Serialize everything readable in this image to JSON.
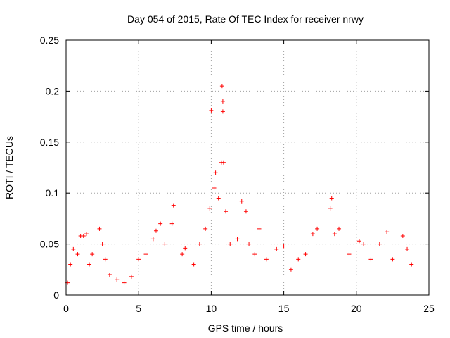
{
  "chart_data": {
    "type": "scatter",
    "title": "Day 054 of 2015, Rate Of TEC Index for receiver nrwy",
    "xlabel": "GPS time / hours",
    "ylabel": "ROTI / TECUs",
    "xlim": [
      0,
      25
    ],
    "ylim": [
      0,
      0.25
    ],
    "x_ticks": [
      0,
      5,
      10,
      15,
      20,
      25
    ],
    "y_ticks": [
      0,
      0.05,
      0.1,
      0.15,
      0.2,
      0.25
    ],
    "x_tick_labels": [
      "0",
      "5",
      "10",
      "15",
      "20",
      "25"
    ],
    "y_tick_labels": [
      "0",
      "0.05",
      "0.1",
      "0.15",
      "0.2",
      "0.25"
    ],
    "grid": true,
    "marker": "+",
    "color": "#ff0000",
    "series": [
      {
        "name": "ROTI",
        "points": [
          [
            0.1,
            0.012
          ],
          [
            0.3,
            0.03
          ],
          [
            0.5,
            0.045
          ],
          [
            0.8,
            0.04
          ],
          [
            1.0,
            0.058
          ],
          [
            1.2,
            0.058
          ],
          [
            1.4,
            0.06
          ],
          [
            1.6,
            0.03
          ],
          [
            1.8,
            0.04
          ],
          [
            2.3,
            0.065
          ],
          [
            2.5,
            0.05
          ],
          [
            2.7,
            0.035
          ],
          [
            3.0,
            0.02
          ],
          [
            3.5,
            0.015
          ],
          [
            4.0,
            0.012
          ],
          [
            4.5,
            0.018
          ],
          [
            5.0,
            0.035
          ],
          [
            5.5,
            0.04
          ],
          [
            6.0,
            0.055
          ],
          [
            6.2,
            0.063
          ],
          [
            6.5,
            0.07
          ],
          [
            6.8,
            0.05
          ],
          [
            7.3,
            0.07
          ],
          [
            7.4,
            0.088
          ],
          [
            8.0,
            0.04
          ],
          [
            8.2,
            0.046
          ],
          [
            8.8,
            0.03
          ],
          [
            9.2,
            0.05
          ],
          [
            9.6,
            0.065
          ],
          [
            9.9,
            0.085
          ],
          [
            10.0,
            0.181
          ],
          [
            10.2,
            0.105
          ],
          [
            10.3,
            0.12
          ],
          [
            10.5,
            0.095
          ],
          [
            10.7,
            0.13
          ],
          [
            10.75,
            0.205
          ],
          [
            10.8,
            0.19
          ],
          [
            10.8,
            0.18
          ],
          [
            10.85,
            0.13
          ],
          [
            11.0,
            0.082
          ],
          [
            11.3,
            0.05
          ],
          [
            11.8,
            0.055
          ],
          [
            12.1,
            0.092
          ],
          [
            12.4,
            0.082
          ],
          [
            12.6,
            0.05
          ],
          [
            13.0,
            0.04
          ],
          [
            13.3,
            0.065
          ],
          [
            13.8,
            0.035
          ],
          [
            14.5,
            0.045
          ],
          [
            15.0,
            0.048
          ],
          [
            15.5,
            0.025
          ],
          [
            16.0,
            0.035
          ],
          [
            16.5,
            0.04
          ],
          [
            17.0,
            0.06
          ],
          [
            17.3,
            0.065
          ],
          [
            18.2,
            0.085
          ],
          [
            18.3,
            0.095
          ],
          [
            18.5,
            0.06
          ],
          [
            18.8,
            0.065
          ],
          [
            19.5,
            0.04
          ],
          [
            20.2,
            0.053
          ],
          [
            20.5,
            0.05
          ],
          [
            21.0,
            0.035
          ],
          [
            21.6,
            0.05
          ],
          [
            22.1,
            0.062
          ],
          [
            22.5,
            0.035
          ],
          [
            23.2,
            0.058
          ],
          [
            23.5,
            0.045
          ],
          [
            23.8,
            0.03
          ]
        ]
      }
    ]
  }
}
